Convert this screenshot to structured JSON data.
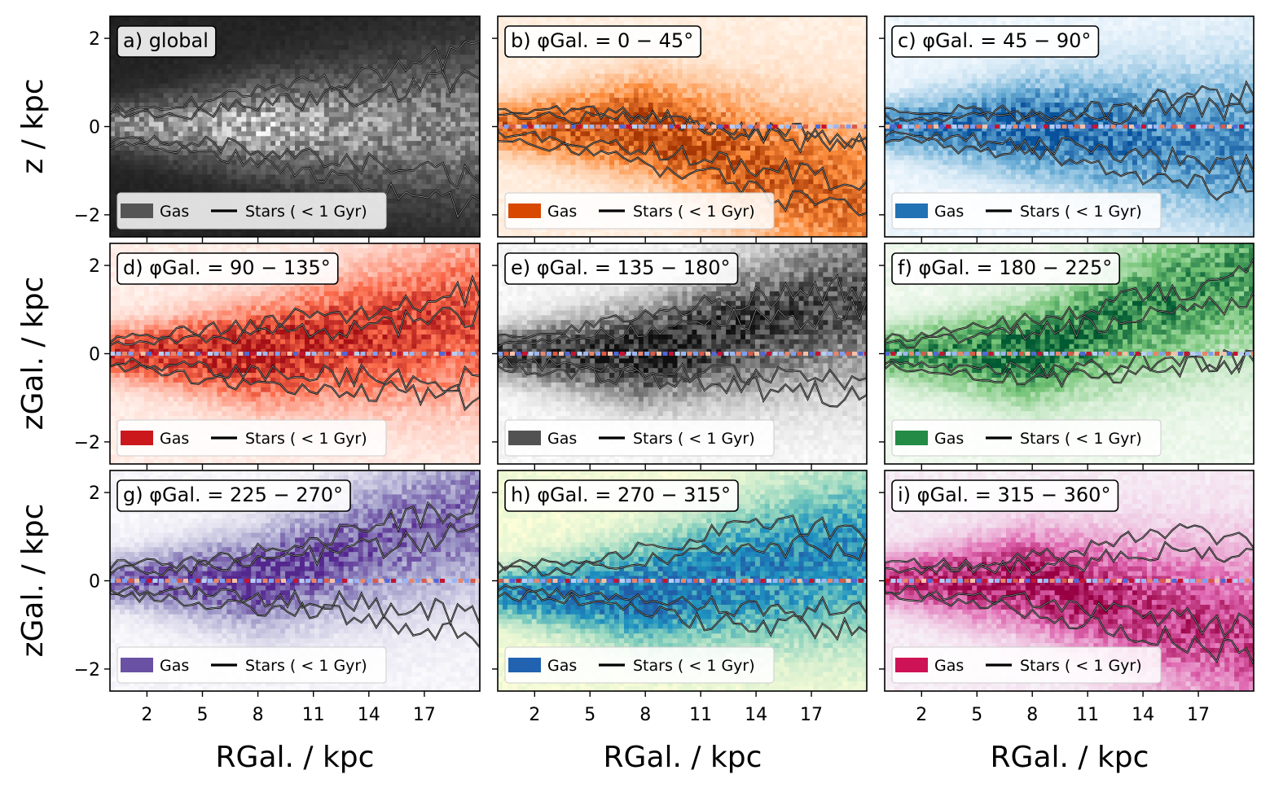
{
  "figure": {
    "y_axis_labels": [
      "z / kpc",
      "zGal. / kpc",
      "zGal. / kpc"
    ],
    "x_axis_label": "RGal. / kpc"
  },
  "chart_data": {
    "type": "heatmap",
    "layout": "3x3 grid, shared axes",
    "xlabel": "RGal. / kpc",
    "xlim": [
      0,
      20
    ],
    "xticks": [
      2,
      5,
      8,
      11,
      14,
      17
    ],
    "ylim": [
      -2.5,
      2.5
    ],
    "yticks": [
      2,
      0,
      -2
    ],
    "legend": {
      "placement": "lower-left",
      "entries": [
        "Gas",
        "Stars ( < 1 Gyr)"
      ]
    },
    "panels": [
      {
        "id": "a",
        "title": "a) global",
        "ylabel": "z / kpc",
        "cmap": "gray",
        "gas_color": "#555555",
        "warp": 0,
        "warp_start": 99,
        "gas_shift": 0,
        "midline": false,
        "contour_top_profile": [
          [
            0,
            0.38
          ],
          [
            3,
            0.42
          ],
          [
            6,
            0.6
          ],
          [
            9,
            0.85
          ],
          [
            12,
            1.05
          ],
          [
            15,
            1.25
          ],
          [
            18,
            1.55
          ],
          [
            20,
            1.7
          ]
        ],
        "contour_bottom_profile": [
          [
            0,
            -0.45
          ],
          [
            3,
            -0.5
          ],
          [
            6,
            -0.65
          ],
          [
            9,
            -0.9
          ],
          [
            12,
            -1.15
          ],
          [
            15,
            -1.45
          ],
          [
            18,
            -1.75
          ],
          [
            20,
            -1.9
          ]
        ]
      },
      {
        "id": "b",
        "title": "b) φGal. = 0 − 45°",
        "ylabel": "",
        "cmap": "orange",
        "gas_color": "#d94801",
        "warp": -1.1,
        "warp_start": 8,
        "gas_shift": 0,
        "midline": true,
        "contour_top_profile": [
          [
            0,
            0.4
          ],
          [
            3,
            0.35
          ],
          [
            6,
            0.3
          ],
          [
            9,
            0.2
          ],
          [
            12,
            0.0
          ],
          [
            15,
            -0.2
          ],
          [
            18,
            -0.4
          ],
          [
            20,
            -0.45
          ]
        ],
        "contour_bottom_profile": [
          [
            0,
            -0.3
          ],
          [
            3,
            -0.45
          ],
          [
            6,
            -0.7
          ],
          [
            9,
            -0.95
          ],
          [
            12,
            -1.2
          ],
          [
            15,
            -1.55
          ],
          [
            18,
            -1.9
          ],
          [
            20,
            -2.0
          ]
        ]
      },
      {
        "id": "c",
        "title": "c) φGal. = 45 − 90°",
        "ylabel": "",
        "cmap": "blue",
        "gas_color": "#2171b5",
        "warp": -0.3,
        "warp_start": 8,
        "gas_shift": 0,
        "midline": true,
        "contour_top_profile": [
          [
            0,
            0.35
          ],
          [
            3,
            0.35
          ],
          [
            6,
            0.3
          ],
          [
            9,
            0.3
          ],
          [
            12,
            0.35
          ],
          [
            15,
            0.6
          ],
          [
            18,
            0.75
          ],
          [
            20,
            0.8
          ]
        ],
        "contour_bottom_profile": [
          [
            0,
            -0.3
          ],
          [
            3,
            -0.4
          ],
          [
            6,
            -0.55
          ],
          [
            9,
            -0.7
          ],
          [
            12,
            -0.9
          ],
          [
            15,
            -1.2
          ],
          [
            18,
            -1.4
          ],
          [
            20,
            -1.5
          ]
        ]
      },
      {
        "id": "d",
        "title": "d) φGal. = 90 − 135°",
        "ylabel": "zGal. / kpc",
        "cmap": "red",
        "gas_color": "#cb181d",
        "warp": 0.5,
        "warp_start": 8,
        "gas_shift": 0,
        "midline": true,
        "contour_top_profile": [
          [
            0,
            0.35
          ],
          [
            3,
            0.45
          ],
          [
            6,
            0.6
          ],
          [
            9,
            0.75
          ],
          [
            12,
            0.9
          ],
          [
            15,
            1.05
          ],
          [
            18,
            1.3
          ],
          [
            20,
            1.5
          ]
        ],
        "contour_bottom_profile": [
          [
            0,
            -0.3
          ],
          [
            3,
            -0.45
          ],
          [
            6,
            -0.6
          ],
          [
            9,
            -0.75
          ],
          [
            12,
            -0.8
          ],
          [
            15,
            -0.85
          ],
          [
            18,
            -0.95
          ],
          [
            20,
            -1.0
          ]
        ]
      },
      {
        "id": "e",
        "title": "e) φGal. = 135 − 180°",
        "ylabel": "",
        "cmap": "gray",
        "gas_color": "#525252",
        "warp": 0.8,
        "warp_start": 8,
        "gas_shift": 0,
        "midline": true,
        "contour_top_profile": [
          [
            0,
            0.35
          ],
          [
            3,
            0.45
          ],
          [
            6,
            0.7
          ],
          [
            9,
            0.95
          ],
          [
            12,
            1.2
          ],
          [
            15,
            1.3
          ],
          [
            18,
            1.45
          ],
          [
            20,
            1.5
          ]
        ],
        "contour_bottom_profile": [
          [
            0,
            -0.3
          ],
          [
            3,
            -0.4
          ],
          [
            6,
            -0.5
          ],
          [
            9,
            -0.6
          ],
          [
            12,
            -0.7
          ],
          [
            15,
            -0.85
          ],
          [
            18,
            -0.95
          ],
          [
            20,
            -1.0
          ]
        ]
      },
      {
        "id": "f",
        "title": "f) φGal. = 180 − 225°",
        "ylabel": "",
        "cmap": "green",
        "gas_color": "#238b45",
        "warp": 1.2,
        "warp_start": 8,
        "gas_shift": 0,
        "midline": true,
        "contour_top_profile": [
          [
            0,
            0.35
          ],
          [
            3,
            0.45
          ],
          [
            6,
            0.65
          ],
          [
            9,
            0.9
          ],
          [
            12,
            1.1
          ],
          [
            15,
            1.35
          ],
          [
            18,
            1.7
          ],
          [
            20,
            2.0
          ]
        ],
        "contour_bottom_profile": [
          [
            0,
            -0.3
          ],
          [
            3,
            -0.4
          ],
          [
            6,
            -0.5
          ],
          [
            9,
            -0.55
          ],
          [
            12,
            -0.5
          ],
          [
            15,
            -0.4
          ],
          [
            18,
            -0.2
          ],
          [
            20,
            -0.1
          ]
        ]
      },
      {
        "id": "g",
        "title": "g) φGal. = 225 − 270°",
        "ylabel": "zGal. / kpc",
        "cmap": "purple",
        "gas_color": "#6a51a3",
        "warp": 1.0,
        "warp_start": 8,
        "gas_shift": 0,
        "midline": true,
        "contour_top_profile": [
          [
            0,
            0.35
          ],
          [
            3,
            0.4
          ],
          [
            6,
            0.55
          ],
          [
            9,
            0.75
          ],
          [
            12,
            1.0
          ],
          [
            15,
            1.3
          ],
          [
            18,
            1.6
          ],
          [
            20,
            1.8
          ]
        ],
        "contour_bottom_profile": [
          [
            0,
            -0.3
          ],
          [
            3,
            -0.4
          ],
          [
            6,
            -0.55
          ],
          [
            9,
            -0.65
          ],
          [
            12,
            -0.75
          ],
          [
            15,
            -0.9
          ],
          [
            18,
            -1.1
          ],
          [
            20,
            -1.2
          ]
        ]
      },
      {
        "id": "h",
        "title": "h) φGal. = 270 − 315°",
        "ylabel": "",
        "cmap": "ylgnbu",
        "gas_color": "#2163b0",
        "warp": 0.6,
        "warp_start": 8,
        "gas_shift": -0.3,
        "midline": true,
        "contour_top_profile": [
          [
            0,
            0.35
          ],
          [
            3,
            0.4
          ],
          [
            6,
            0.55
          ],
          [
            9,
            0.8
          ],
          [
            12,
            1.15
          ],
          [
            15,
            1.3
          ],
          [
            18,
            1.2
          ],
          [
            20,
            1.1
          ]
        ],
        "contour_bottom_profile": [
          [
            0,
            -0.3
          ],
          [
            3,
            -0.4
          ],
          [
            6,
            -0.55
          ],
          [
            9,
            -0.75
          ],
          [
            12,
            -0.95
          ],
          [
            15,
            -1.05
          ],
          [
            18,
            -1.1
          ],
          [
            20,
            -1.15
          ]
        ]
      },
      {
        "id": "i",
        "title": "i) φGal. = 315 − 360°",
        "ylabel": "",
        "cmap": "pink",
        "gas_color": "#ce1256",
        "warp": -0.8,
        "warp_start": 8,
        "gas_shift": 0,
        "midline": true,
        "contour_top_profile": [
          [
            0,
            0.35
          ],
          [
            3,
            0.4
          ],
          [
            6,
            0.45
          ],
          [
            9,
            0.6
          ],
          [
            12,
            0.8
          ],
          [
            15,
            1.0
          ],
          [
            18,
            1.0
          ],
          [
            20,
            0.9
          ]
        ],
        "contour_bottom_profile": [
          [
            0,
            -0.3
          ],
          [
            3,
            -0.45
          ],
          [
            6,
            -0.6
          ],
          [
            9,
            -0.8
          ],
          [
            12,
            -1.0
          ],
          [
            15,
            -1.3
          ],
          [
            18,
            -1.6
          ],
          [
            20,
            -1.7
          ]
        ]
      }
    ]
  }
}
